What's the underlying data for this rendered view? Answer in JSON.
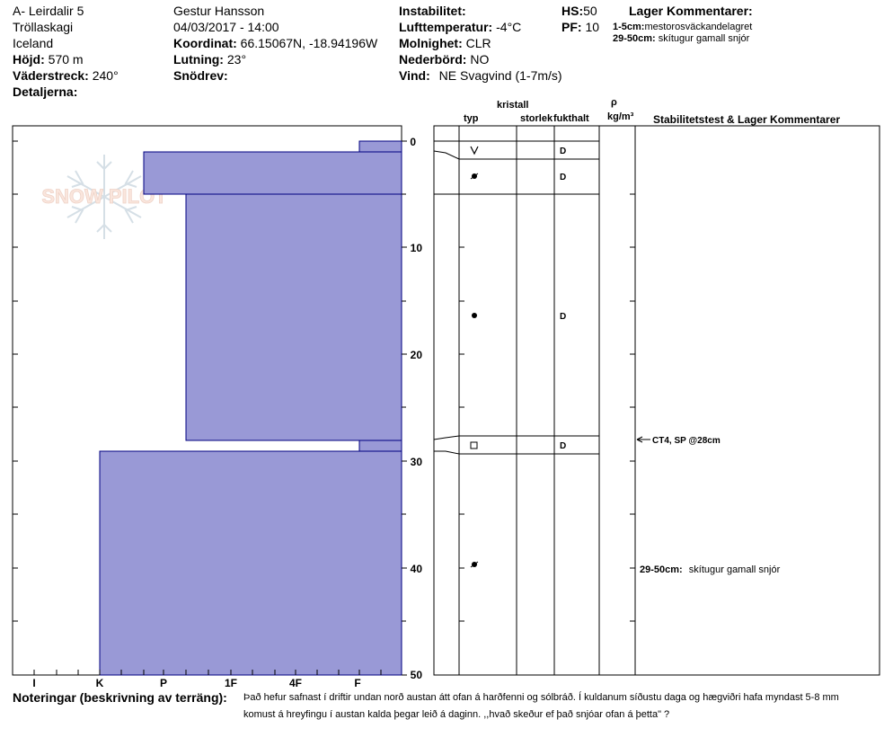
{
  "header": {
    "location": "A- Leirdalir 5",
    "region": "Tröllaskagi",
    "country": "Iceland",
    "elevation_label": "Höjd:",
    "elevation_value": "570 m",
    "aspect_label": "Väderstreck:",
    "aspect_value": "240°",
    "details_label": "Detaljerna:",
    "observer": "Gestur Hansson",
    "datetime": "04/03/2017 - 14:00",
    "coord_label": "Koordinat:",
    "coord_value": "66.15067N, -18.94196W",
    "slope_label": "Lutning:",
    "slope_value": "23°",
    "drift_label": "Snödrev:",
    "instability_label": "Instabilitet:",
    "airtemp_label": "Lufttemperatur:",
    "airtemp_value": "-4°C",
    "sky_label": "Molnighet:",
    "sky_value": "CLR",
    "precip_label": "Nederbörd:",
    "precip_value": "NO",
    "wind_label": "Vind:",
    "wind_value": "NE Svagvind (1-7m/s)",
    "hs_label": "HS:",
    "hs_value": "50",
    "pf_label": "PF:",
    "pf_value": "10",
    "layer_comments_title": "Lager Kommentarer:",
    "layer_comments": [
      {
        "range": "1-5cm:",
        "text": "mestorosväckandelagret"
      },
      {
        "range": "29-50cm:",
        "text": "skítugur gamall snjór"
      }
    ]
  },
  "watermark": "SNOW PILOT",
  "columns": {
    "crystal": "kristall",
    "type": "typ",
    "size": "storlek",
    "moisture": "fukthalt",
    "rho": "ρ",
    "density_unit": "kg/m³",
    "stability": "Stabilitetstest & Lager Kommentarer"
  },
  "hardness_axis": [
    "I",
    "K",
    "P",
    "1F",
    "4F",
    "F"
  ],
  "depth_axis": [
    "0",
    "10",
    "20",
    "30",
    "40",
    "50"
  ],
  "layers": [
    {
      "top": 0,
      "bottom": 1,
      "hardness": "F"
    },
    {
      "top": 1,
      "bottom": 5,
      "hardness": "K-P"
    },
    {
      "top": 5,
      "bottom": 28,
      "hardness": "P-1F"
    },
    {
      "top": 28,
      "bottom": 29,
      "hardness": "F"
    },
    {
      "top": 29,
      "bottom": 50,
      "hardness": "K"
    }
  ],
  "layer_moisture": [
    "D",
    "D",
    "D",
    "D"
  ],
  "stability_tests": [
    {
      "depth": 28,
      "text": "CT4, SP @28cm"
    }
  ],
  "right_comments": [
    {
      "depth": 40,
      "range": "29-50cm:",
      "text": "skítugur gamall snjór"
    }
  ],
  "notes_label": "Noteringar (beskrivning av terräng):",
  "notes_line1": "Það hefur safnast í driftir undan norð austan átt ofan á harðfenni og sólbráð. Í kuldanum síðustu daga og hægviðri  hafa myndast 5-8 mm",
  "notes_line2": "komust á hreyfingu í austan kalda þegar leið á daginn. ,,hvað skeður ef það snjóar ofan á þetta\" ?",
  "colors": {
    "layer_fill": "#9999d6",
    "layer_stroke": "#000080"
  }
}
